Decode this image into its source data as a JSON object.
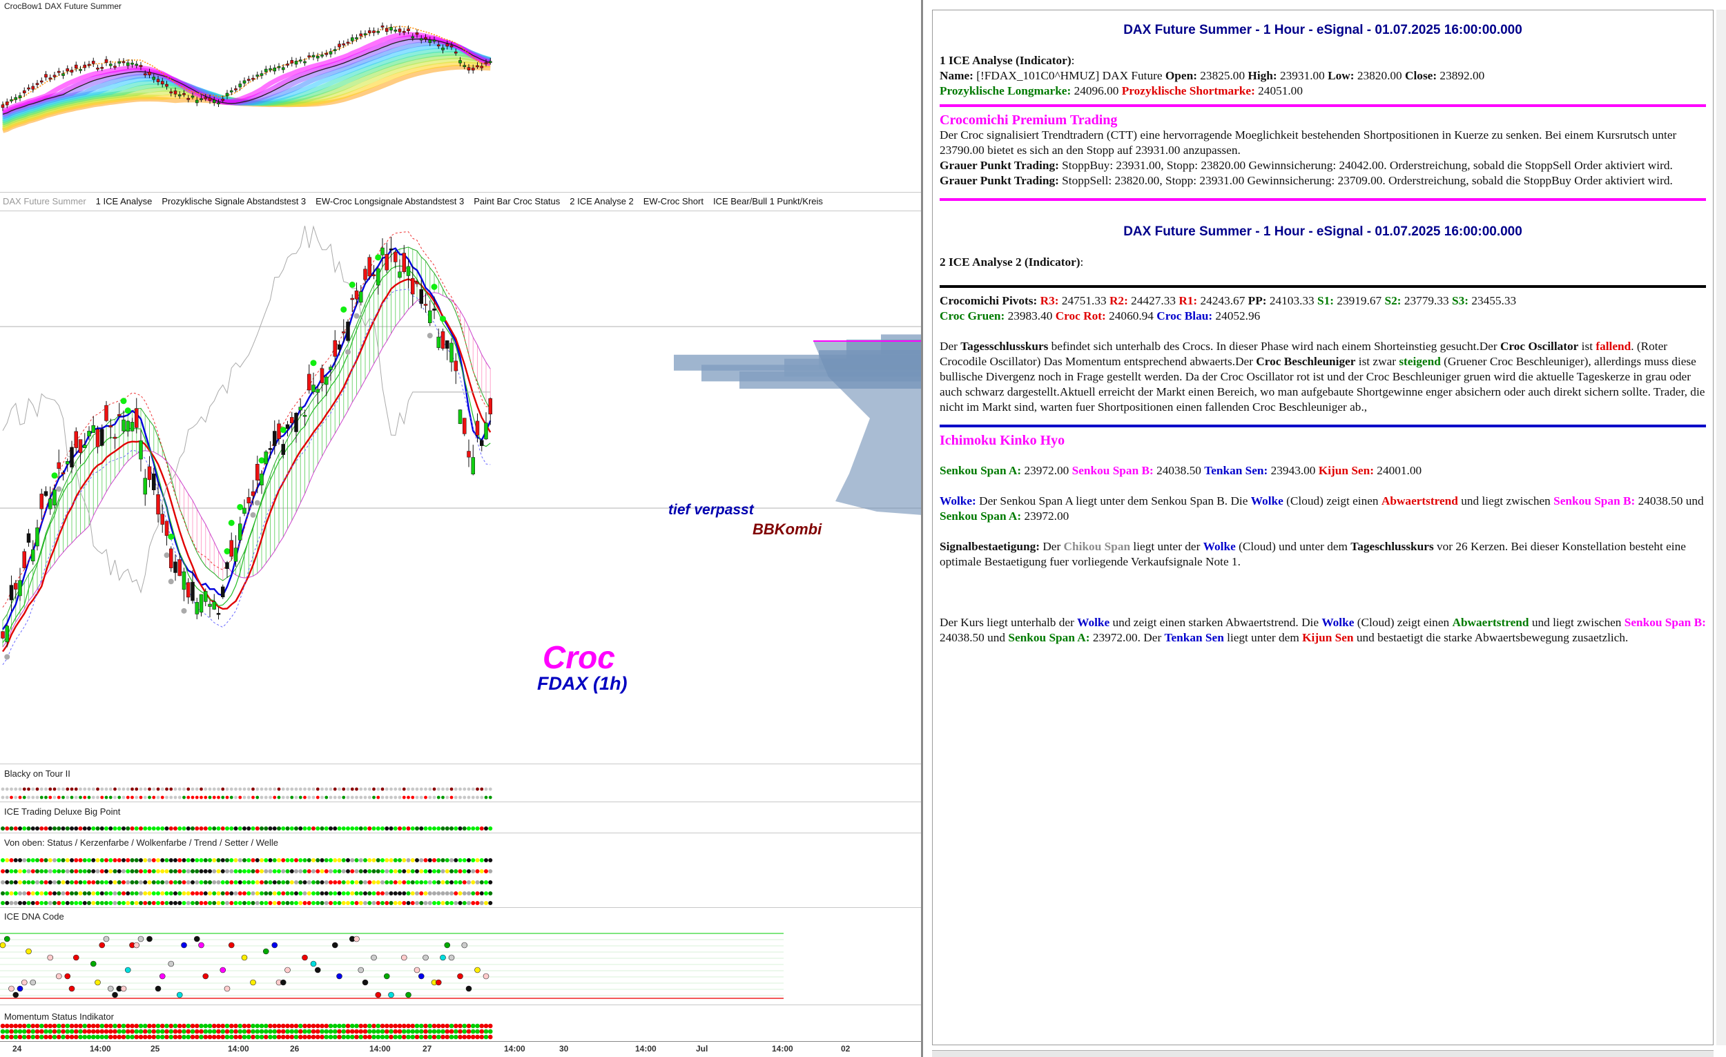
{
  "chart": {
    "top_title": "CrocBow1  DAX Future Summer",
    "indicator_tabs": [
      "DAX Future Summer",
      "1 ICE Analyse",
      "Prozyklische Signale Abstandstest 3",
      "EW-Croc Longsignale Abstandstest 3",
      "Paint Bar Croc Status",
      "2 ICE Analyse 2",
      "EW-Croc Short",
      "ICE Bear/Bull 1 Punkt/Kreis"
    ],
    "annotation_tief": "tief verpasst",
    "annotation_bbkombi": "BBKombi",
    "watermark_croc": "Croc",
    "watermark_sub": "FDAX (1h)",
    "panels": {
      "blacky": "Blacky on Tour II",
      "ice_trading": "ICE Trading Deluxe Big Point",
      "status": "Von oben: Status / Kerzenfarbe / Wolkenfarbe / Trend / Setter / Welle",
      "dna": "ICE DNA Code",
      "momentum": "Momentum Status Indikator"
    },
    "time_axis": [
      "24",
      "14:00",
      "25",
      "14:00",
      "26",
      "14:00",
      "27",
      "14:00",
      "30",
      "14:00",
      "Jul",
      "14:00",
      "02"
    ]
  },
  "panel1": {
    "header": "DAX Future Summer - 1 Hour - eSignal - 01.07.2025 16:00:00.000",
    "analyse_label": "1 ICE Analyse (Indicator)",
    "name_label": "Name:",
    "name_value": "[!FDAX_101C0^HMUZ] DAX Future",
    "open_label": "Open:",
    "open": "23825.00",
    "high_label": "High:",
    "high": "23931.00",
    "low_label": "Low:",
    "low": "23820.00",
    "close_label": "Close:",
    "close": "23892.00",
    "long_label": "Prozyklische Longmarke:",
    "long": "24096.00",
    "short_label": "Prozyklische Shortmarke:",
    "short": "24051.00",
    "premium_title": "Crocomichi Premium Trading",
    "premium_text": "Der Croc signalisiert Trendtradern (CTT) eine hervorragende Moeglichkeit bestehenden Shortpositionen in Kuerze zu senken. Bei einem Kursrutsch unter 23790.00 bietet es sich an den Stopp auf 23931.00 anzupassen.",
    "gp1_label": "Grauer Punkt Trading:",
    "gp1_text": "StoppBuy: 23931.00, Stopp: 23820.00 Gewinnsicherung: 24042.00. Orderstreichung, sobald die StoppSell Order aktiviert wird.",
    "gp2_label": "Grauer Punkt Trading:",
    "gp2_text": "StoppSell: 23820.00, Stopp: 23931.00 Gewinnsicherung: 23709.00. Orderstreichung, sobald die StoppBuy Order aktiviert wird."
  },
  "panel2": {
    "header": "DAX Future Summer - 1 Hour - eSignal - 01.07.2025 16:00:00.000",
    "analyse_label": "2 ICE Analyse 2 (Indicator)",
    "pivots_label": "Crocomichi Pivots:",
    "r3_label": "R3:",
    "r3": "24751.33",
    "r2_label": "R2:",
    "r2": "24427.33",
    "r1_label": "R1:",
    "r1": "24243.67",
    "pp_label": "PP:",
    "pp": "24103.33",
    "s1_label": "S1:",
    "s1": "23919.67",
    "s2_label": "S2:",
    "s2": "23779.33",
    "s3_label": "S3:",
    "s3": "23455.33",
    "croc_gruen_label": "Croc Gruen:",
    "croc_gruen": "23983.40",
    "croc_rot_label": "Croc Rot:",
    "croc_rot": "24060.94",
    "croc_blau_label": "Croc Blau:",
    "croc_blau": "24052.96",
    "p1": "Der ",
    "tsk": "Tagesschlusskurs",
    "p2": " befindet sich unterhalb des Crocs. In dieser Phase wird nach einem Shorteinstieg gesucht.Der ",
    "croc_osc": "Croc Oscillator",
    "p3": " ist ",
    "fallend": "fallend",
    "p4": ". (Roter Crocodile Oscillator) Das Momentum entsprechend abwaerts.Der ",
    "croc_besch": "Croc Beschleuniger",
    "p5": " ist zwar ",
    "steigend": "steigend",
    "p6": " (Gruener Croc Beschleuniger), allerdings muss diese bullische Divergenz noch in Frage gestellt werden. Da der Croc Oscillator rot ist und der Croc Beschleuniger gruen wird die aktuelle Tageskerze in grau oder auch schwarz dargestellt.Aktuell erreicht der Markt einen Bereich, wo man aufgebaute Shortgewinne enger absichern oder auch direkt sichern sollte. Trader, die nicht im Markt sind, warten fuer Shortpositionen einen fallenden Croc Beschleuniger ab.,"
  },
  "ichimoku": {
    "title": "Ichimoku Kinko Hyo",
    "senkou_a_label": "Senkou Span A:",
    "senkou_a": "23972.00",
    "senkou_b_label": "Senkou Span B:",
    "senkou_b": "24038.50",
    "tenkan_label": "Tenkan Sen:",
    "tenkan": "23943.00",
    "kijun_label": "Kijun Sen:",
    "kijun": "24001.00",
    "w_label": "Wolke:",
    "w1": " Der Senkou Span A liegt unter dem Senkou Span B. Die ",
    "w_wolke": "Wolke",
    "w2": " (Cloud) zeigt einen ",
    "w_abw": "Abwaertstrend",
    "w3": " und liegt zwischen ",
    "w_sb": "Senkou Span B:",
    "w_sb_val": " 24038.50 und ",
    "w_sa": "Senkou Span A:",
    "w_sa_val": " 23972.00",
    "sb_label": "Signalbestaetigung:",
    "sb1": " Der ",
    "chikou": "Chikou Span",
    "sb2": " liegt unter der ",
    "sb_wolke": "Wolke",
    "sb3": " (Cloud) und unter dem ",
    "sb_tsk": "Tageschlusskurs",
    "sb4": " vor 26 Kerzen. Bei dieser Konstellation besteht eine optimale Bestaetigung fuer vorliegende Verkaufsignale Note 1.",
    "k1": "Der Kurs liegt unterhalb der ",
    "k_wolke1": "Wolke",
    "k2": " und zeigt einen starken Abwaertstrend. Die ",
    "k_wolke2": "Wolke",
    "k3": " (Cloud) zeigt einen ",
    "k_abw": "Abwaertstrend",
    "k4": " und liegt zwischen ",
    "k_sb": "Senkou Span B:",
    "k5": " 24038.50 und ",
    "k_sa": "Senkou Span A:",
    "k6": " 23972.00. Der ",
    "k_tenkan": "Tenkan Sen",
    "k7": " liegt unter dem ",
    "k_kijun": "Kijun Sen",
    "k8": " und bestaetigt die starke Abwaertsbewegung zusaetzlich."
  }
}
